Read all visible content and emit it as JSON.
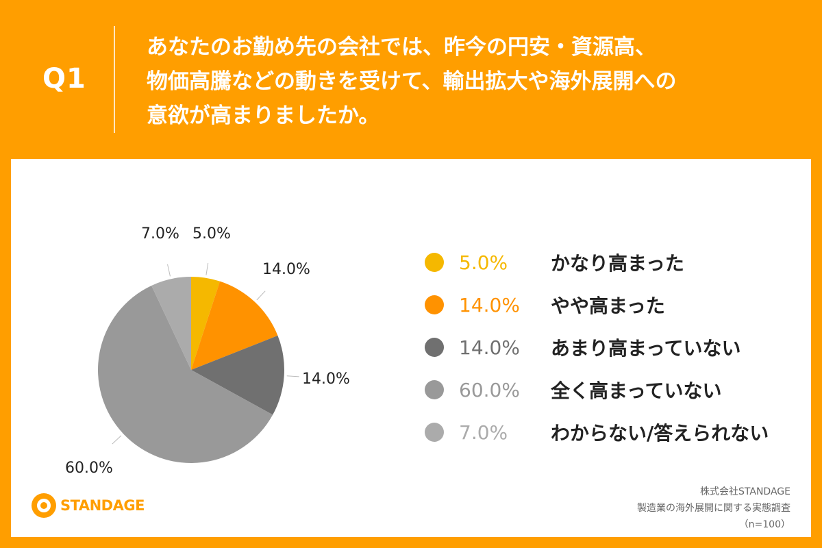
{
  "question": {
    "label": "Q1",
    "lines": [
      "あなたのお勤め先の会社では、昨今の円安・資源高、",
      "物価高騰などの動きを受けて、輸出拡大や海外展開への",
      "意欲が高まりましたか。"
    ]
  },
  "chart_data": {
    "type": "pie",
    "unit": "%",
    "slices": [
      {
        "label": "かなり高まった",
        "value": 5.0,
        "display": "5.0%",
        "color": "#F5B800"
      },
      {
        "label": "やや高まった",
        "value": 14.0,
        "display": "14.0%",
        "color": "#FF9200"
      },
      {
        "label": "あまり高まっていない",
        "value": 14.0,
        "display": "14.0%",
        "color": "#707070"
      },
      {
        "label": "全く高まっていない",
        "value": 60.0,
        "display": "60.0%",
        "color": "#999999"
      },
      {
        "label": "わからない/答えられない",
        "value": 7.0,
        "display": "7.0%",
        "color": "#ABABAB"
      }
    ],
    "legend_placement": "right"
  },
  "logo": {
    "text": "STANDAGE"
  },
  "credits": {
    "company": "株式会社STANDAGE",
    "survey": "製造業の海外展開に関する実態調査",
    "sample": "（n=100）"
  }
}
